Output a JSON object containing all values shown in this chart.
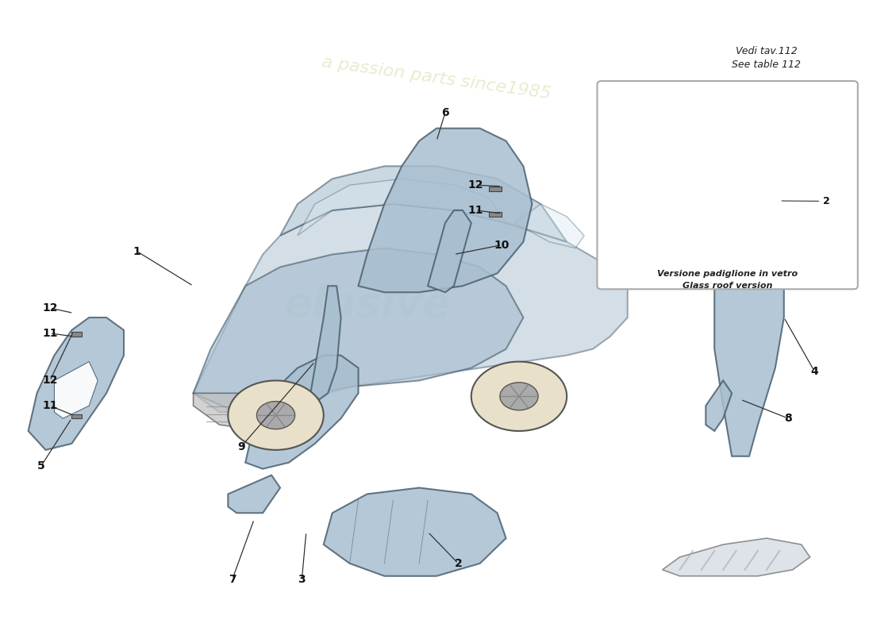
{
  "title": "",
  "bg_color": "#ffffff",
  "car_body_color": "#a8bfd0",
  "car_outline_color": "#888888",
  "part_color": "#a8bfd0",
  "part_edge_color": "#4a6070",
  "watermark_color": "#cccc88",
  "watermark_text1": "elusive",
  "watermark_text2": "a passion parts since1985",
  "note_top_right": "Vedi tav.112\nSee table 112",
  "inset_label_it": "Versione padiglione in vetro",
  "inset_label_en": "Glass roof version"
}
